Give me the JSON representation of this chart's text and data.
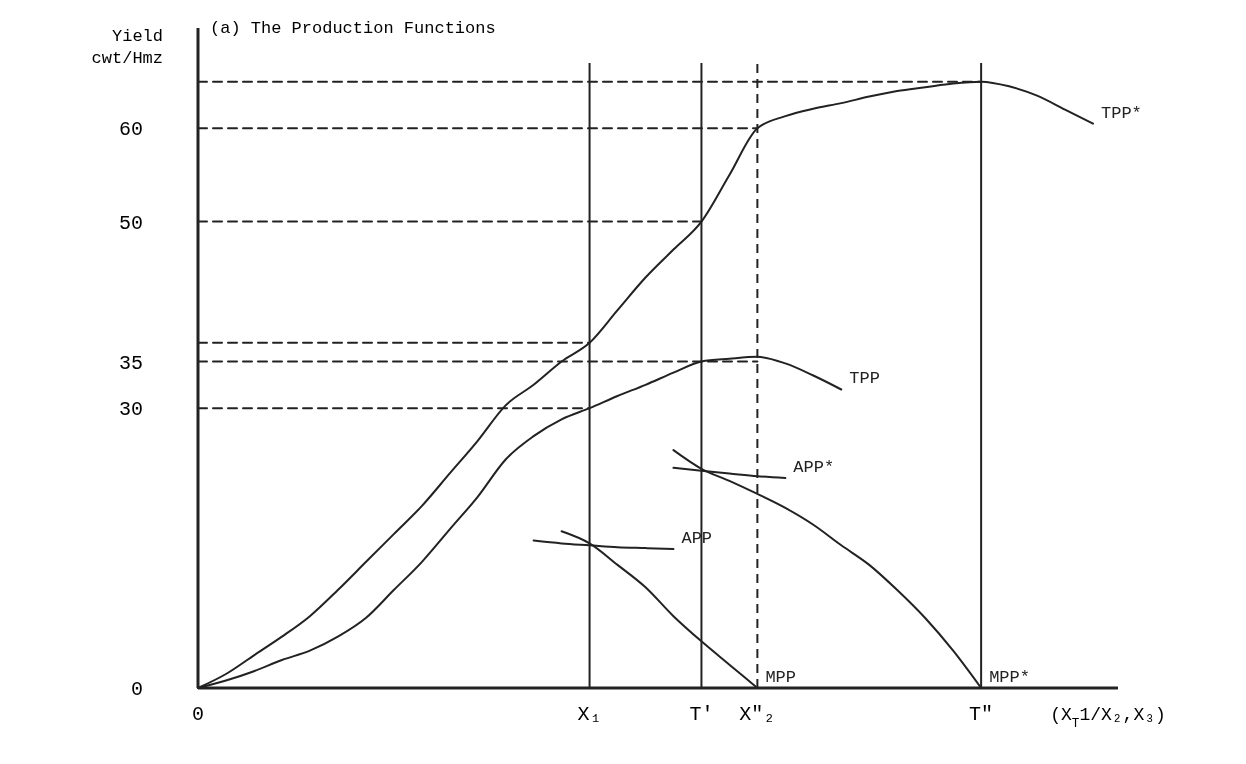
{
  "chart_data": {
    "type": "line",
    "title": "(a) The Production Functions",
    "ylabel": "Yield cwt/Hmz",
    "xlabel": "(X$_{T}$1/X₂,X₃)",
    "categories": [
      "0",
      null,
      null,
      null,
      null,
      null,
      null,
      null,
      null,
      null,
      null,
      null,
      null,
      null,
      "X₁",
      null,
      null,
      null,
      "T'",
      null,
      "X″₂",
      null,
      null,
      null,
      null,
      null,
      null,
      null,
      "T\"",
      null,
      null,
      null,
      null
    ],
    "ylim": [
      0,
      67
    ],
    "yticks": [
      0,
      30,
      35,
      50,
      60
    ],
    "ref_lines": [
      {
        "axis": "x",
        "value": "X₁",
        "label": null,
        "line_style": "solid"
      },
      {
        "axis": "x",
        "value": "T'",
        "label": null,
        "line_style": "solid"
      },
      {
        "axis": "x",
        "value": "X″₂",
        "label": null,
        "line_style": "dashed"
      },
      {
        "axis": "x",
        "value": "T\"",
        "label": null,
        "line_style": "solid"
      }
    ],
    "series": [
      {
        "name": "TPP*",
        "color": "#222222",
        "line_style": "solid",
        "values": [
          0,
          1.5,
          3.5,
          5.5,
          7.7,
          10.5,
          13.5,
          16.5,
          19.5,
          23,
          26.5,
          30.3,
          32.5,
          35,
          37,
          40.5,
          44,
          47,
          50,
          55,
          60,
          61.3,
          62.1,
          62.7,
          63.4,
          64,
          64.4,
          64.8,
          65,
          64.5,
          63.5,
          62,
          60.5
        ]
      },
      {
        "name": "TPP",
        "color": "#222222",
        "line_style": "solid",
        "values": [
          0,
          0.8,
          1.8,
          3,
          4,
          5.5,
          7.5,
          10.5,
          13.5,
          17,
          20.5,
          24.5,
          27,
          28.8,
          30,
          31.3,
          32.5,
          33.8,
          35,
          35.3,
          35.5,
          34.8,
          33.5,
          32,
          null,
          null,
          null,
          null,
          null,
          null,
          null,
          null,
          null
        ]
      },
      {
        "name": "APP*",
        "color": "#222222",
        "line_style": "solid",
        "values": [
          null,
          null,
          null,
          null,
          null,
          null,
          null,
          null,
          null,
          null,
          null,
          null,
          null,
          null,
          null,
          null,
          null,
          23.6,
          23.3,
          23,
          22.7,
          22.5,
          null,
          null,
          null,
          null,
          null,
          null,
          null,
          null,
          null,
          null,
          null
        ]
      },
      {
        "name": "MPP*",
        "color": "#222222",
        "line_style": "solid",
        "values": [
          null,
          null,
          null,
          null,
          null,
          null,
          null,
          null,
          null,
          null,
          null,
          null,
          null,
          null,
          null,
          null,
          null,
          25.5,
          23.5,
          22.2,
          20.8,
          19.3,
          17.5,
          15.3,
          13.2,
          10.5,
          7.5,
          4,
          0,
          null,
          null,
          null,
          null
        ]
      },
      {
        "name": "APP",
        "color": "#222222",
        "line_style": "solid",
        "values": [
          null,
          null,
          null,
          null,
          null,
          null,
          null,
          null,
          null,
          null,
          null,
          null,
          15.8,
          15.5,
          15.3,
          15.1,
          15,
          14.9,
          null,
          null,
          null,
          null,
          null,
          null,
          null,
          null,
          null,
          null,
          null,
          null,
          null,
          null,
          null
        ]
      },
      {
        "name": "MPP",
        "color": "#222222",
        "line_style": "solid",
        "values": [
          null,
          null,
          null,
          null,
          null,
          null,
          null,
          null,
          null,
          null,
          null,
          null,
          null,
          16.8,
          15.5,
          13.2,
          10.8,
          7.7,
          5,
          2.5,
          0,
          null,
          null,
          null,
          null,
          null,
          null,
          null,
          null,
          null,
          null,
          null,
          null
        ]
      },
      {
        "color": "#222222",
        "line_style": "dashed",
        "values": [
          65,
          65,
          65,
          65,
          65,
          65,
          65,
          65,
          65,
          65,
          65,
          65,
          65,
          65,
          65,
          65,
          65,
          65,
          65,
          65,
          65,
          65,
          65,
          65,
          65,
          65,
          65,
          65,
          65,
          null,
          null,
          null,
          null
        ]
      },
      {
        "color": "#222222",
        "line_style": "dashed",
        "values": [
          60,
          60,
          60,
          60,
          60,
          60,
          60,
          60,
          60,
          60,
          60,
          60,
          60,
          60,
          60,
          60,
          60,
          60,
          60,
          60,
          60,
          null,
          null,
          null,
          null,
          null,
          null,
          null,
          null,
          null,
          null,
          null,
          null
        ]
      },
      {
        "color": "#222222",
        "line_style": "dashed",
        "values": [
          50,
          50,
          50,
          50,
          50,
          50,
          50,
          50,
          50,
          50,
          50,
          50,
          50,
          50,
          50,
          50,
          50,
          50,
          50,
          null,
          null,
          null,
          null,
          null,
          null,
          null,
          null,
          null,
          null,
          null,
          null,
          null,
          null
        ]
      },
      {
        "color": "#222222",
        "line_style": "dashed",
        "values": [
          37,
          37,
          37,
          37,
          37,
          37,
          37,
          37,
          37,
          37,
          37,
          37,
          37,
          37,
          37,
          null,
          null,
          null,
          null,
          null,
          null,
          null,
          null,
          null,
          null,
          null,
          null,
          null,
          null,
          null,
          null,
          null,
          null
        ]
      },
      {
        "color": "#222222",
        "line_style": "dashed",
        "values": [
          35,
          35,
          35,
          35,
          35,
          35,
          35,
          35,
          35,
          35,
          35,
          35,
          35,
          35,
          35,
          35,
          35,
          35,
          35,
          35,
          35,
          null,
          null,
          null,
          null,
          null,
          null,
          null,
          null,
          null,
          null,
          null,
          null
        ]
      },
      {
        "color": "#222222",
        "line_style": "dashed",
        "values": [
          30,
          30,
          30,
          30,
          30,
          30,
          30,
          30,
          30,
          30,
          30,
          30,
          30,
          30,
          30,
          null,
          null,
          null,
          null,
          null,
          null,
          null,
          null,
          null,
          null,
          null,
          null,
          null,
          null,
          null,
          null,
          null,
          null
        ]
      }
    ]
  }
}
